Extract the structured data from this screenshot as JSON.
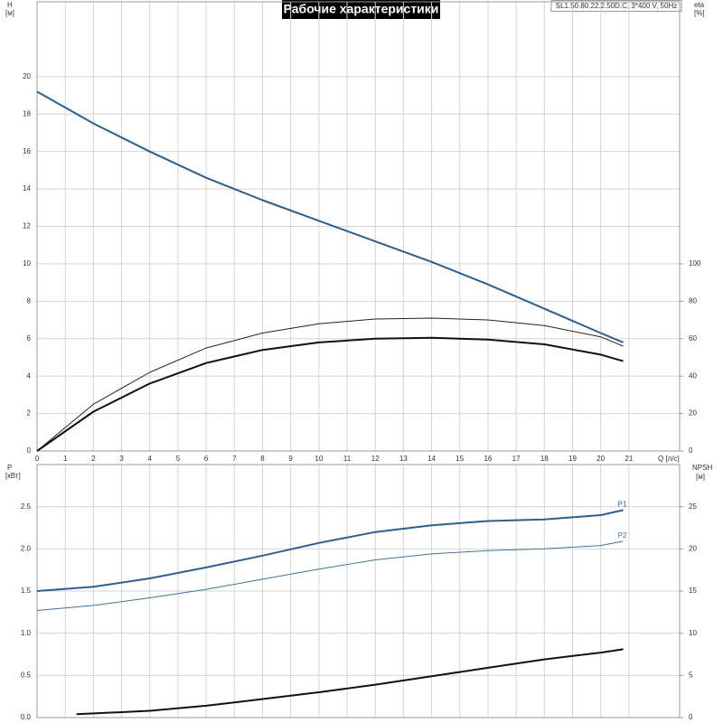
{
  "chart_data": [
    {
      "type": "line",
      "title": "Рабочие характеристики",
      "subtitle": "SL1.50.80.22.2.50D.C, 3*400 V, 50Hz",
      "x_label": "Q [л/с]",
      "y_label": "H",
      "y_unit": "[м]",
      "y2_label": "eta",
      "y2_unit": "[%]",
      "xlim": [
        0,
        22.8
      ],
      "xticks": [
        0,
        1,
        2,
        3,
        4,
        5,
        6,
        7,
        8,
        9,
        10,
        11,
        12,
        13,
        14,
        15,
        16,
        17,
        18,
        19,
        20,
        21
      ],
      "ylim": [
        0,
        24
      ],
      "yticks": [
        0,
        2,
        4,
        6,
        8,
        10,
        12,
        14,
        16,
        18,
        20
      ],
      "y2lim": [
        0,
        240
      ],
      "y2ticks": [
        0,
        20,
        40,
        60,
        80,
        100
      ],
      "grid": true,
      "series": [
        {
          "color": "#2b5f91",
          "width": 2,
          "x": [
            0,
            2,
            4,
            6,
            8,
            10,
            12,
            14,
            16,
            18,
            20,
            20.8
          ],
          "values": [
            19.2,
            17.5,
            16.0,
            14.6,
            13.4,
            12.3,
            11.2,
            10.1,
            8.9,
            7.6,
            6.3,
            5.8
          ]
        },
        {
          "color": "#222222",
          "width": 1,
          "axis": "y2",
          "x": [
            0,
            2,
            4,
            6,
            8,
            10,
            12,
            14,
            16,
            18,
            20,
            20.8
          ],
          "values": [
            0,
            25,
            42,
            55,
            63,
            68,
            70.5,
            71,
            70,
            67,
            61,
            56
          ]
        },
        {
          "color": "#111111",
          "width": 2,
          "axis": "y2",
          "x": [
            0,
            2,
            4,
            6,
            8,
            10,
            12,
            14,
            16,
            18,
            20,
            20.8
          ],
          "values": [
            0,
            21,
            36,
            47,
            54,
            58,
            60,
            60.5,
            59.5,
            57,
            51.5,
            48
          ]
        }
      ]
    },
    {
      "type": "line",
      "y_label": "P",
      "y_unit": "[кВт]",
      "y2_label": "NPSH",
      "y2_unit": "[м]",
      "xlim": [
        0,
        22.8
      ],
      "ylim": [
        0,
        3
      ],
      "yticks": [
        {
          "value": 0,
          "label": "0.0"
        },
        0.5,
        {
          "value": 1,
          "label": "1.0"
        },
        1.5,
        {
          "value": 2,
          "label": "2.0"
        },
        2.5
      ],
      "y2lim": [
        0,
        30
      ],
      "y2ticks": [
        0,
        5,
        10,
        15,
        20,
        25
      ],
      "grid": true,
      "series": [
        {
          "name": "P1",
          "color": "#2b5f91",
          "width": 2,
          "x": [
            0,
            2,
            4,
            6,
            8,
            10,
            12,
            14,
            16,
            18,
            20,
            20.8
          ],
          "values": [
            1.5,
            1.55,
            1.65,
            1.78,
            1.92,
            2.07,
            2.2,
            2.28,
            2.33,
            2.35,
            2.4,
            2.46
          ]
        },
        {
          "name": "P2",
          "color": "#3f72a3",
          "width": 1,
          "x": [
            0,
            2,
            4,
            6,
            8,
            10,
            12,
            14,
            16,
            18,
            20,
            20.8
          ],
          "values": [
            1.27,
            1.33,
            1.42,
            1.52,
            1.64,
            1.76,
            1.87,
            1.94,
            1.98,
            2.0,
            2.04,
            2.09
          ]
        },
        {
          "color": "#111111",
          "width": 2,
          "axis": "y2",
          "x": [
            1.4,
            4,
            6,
            8,
            10,
            12,
            14,
            16,
            18,
            20,
            20.8
          ],
          "values": [
            0.4,
            0.8,
            1.4,
            2.2,
            3.0,
            3.9,
            4.9,
            5.9,
            6.9,
            7.7,
            8.1
          ]
        }
      ]
    }
  ]
}
